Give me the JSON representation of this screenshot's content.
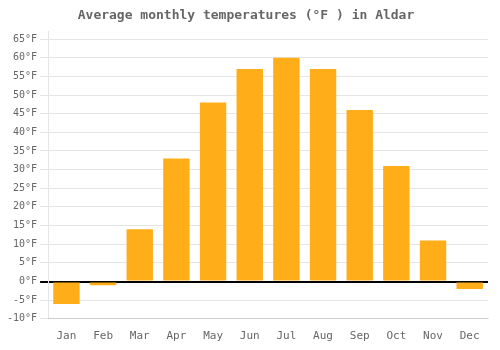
{
  "chart_data": {
    "type": "bar",
    "title": "Average monthly temperatures (°F ) in Aldar",
    "categories": [
      "Jan",
      "Feb",
      "Mar",
      "Apr",
      "May",
      "Jun",
      "Jul",
      "Aug",
      "Sep",
      "Oct",
      "Nov",
      "Dec"
    ],
    "values": [
      -6,
      -1,
      14,
      33,
      48,
      57,
      60,
      57,
      46,
      31,
      11,
      -2
    ],
    "color": "#FFAE1A",
    "ylim": [
      -10,
      67
    ],
    "yticks": [
      {
        "value": -10,
        "label": "-10°F"
      },
      {
        "value": -5,
        "label": "-5°F"
      },
      {
        "value": 0,
        "label": "0°F"
      },
      {
        "value": 5,
        "label": "5°F"
      },
      {
        "value": 10,
        "label": "10°F"
      },
      {
        "value": 15,
        "label": "15°F"
      },
      {
        "value": 20,
        "label": "20°F"
      },
      {
        "value": 25,
        "label": "25°F"
      },
      {
        "value": 30,
        "label": "30°F"
      },
      {
        "value": 35,
        "label": "35°F"
      },
      {
        "value": 40,
        "label": "40°F"
      },
      {
        "value": 45,
        "label": "45°F"
      },
      {
        "value": 50,
        "label": "50°F"
      },
      {
        "value": 55,
        "label": "55°F"
      },
      {
        "value": 60,
        "label": "60°F"
      },
      {
        "value": 65,
        "label": "65°F"
      }
    ],
    "grid": true
  }
}
